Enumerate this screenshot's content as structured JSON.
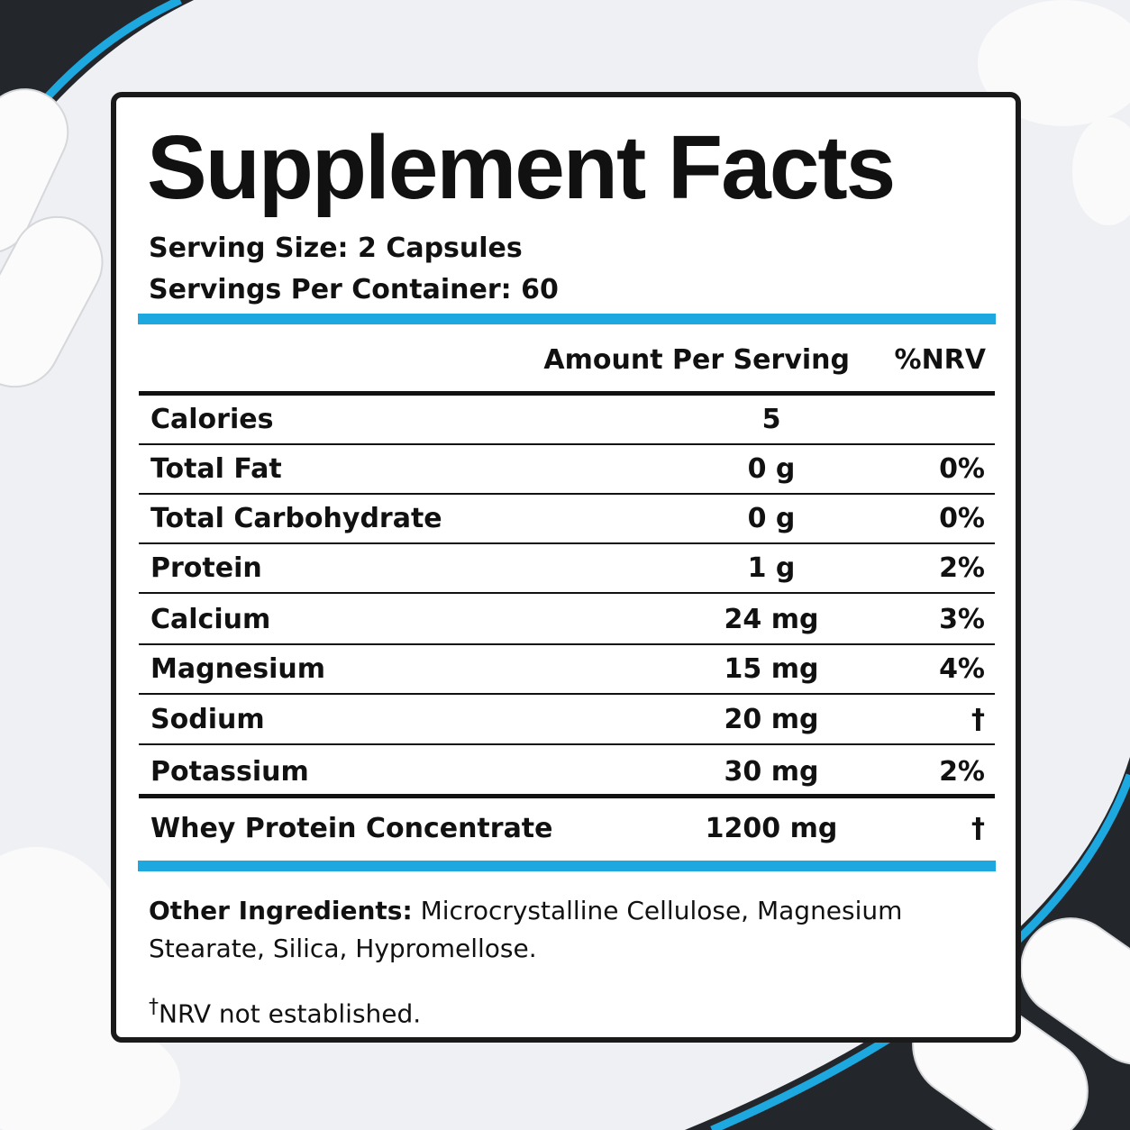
{
  "header": {
    "title": "Supplement Facts"
  },
  "serving": {
    "size": "Serving Size: 2 Capsules",
    "per_container": "Servings Per Container: 60"
  },
  "table": {
    "columns": [
      "Amount Per Serving",
      "%NRV"
    ],
    "rows": [
      [
        "Calories",
        "5"
      ],
      [
        "Total Fat",
        "0 g",
        "0%"
      ],
      [
        "Total Carbohydrate",
        "0 g",
        "0%"
      ],
      [
        "Protein",
        "1 g",
        "2%"
      ],
      [
        "Calcium",
        "24 mg",
        "3%"
      ],
      [
        "Magnesium",
        "15 mg",
        "4%"
      ],
      [
        "Sodium",
        "20 mg",
        "†"
      ],
      [
        "Potassium",
        "30 mg",
        "2%"
      ],
      [
        "Whey Protein Concentrate",
        "1200 mg",
        "†"
      ]
    ]
  },
  "other_ingredients": {
    "label": "Other Ingredients:",
    "text": "Microcrystalline Cellulose, Magnesium Stearate, Silica, Hypromellose."
  },
  "footnote": {
    "symbol": "†",
    "text": "NRV not established."
  }
}
